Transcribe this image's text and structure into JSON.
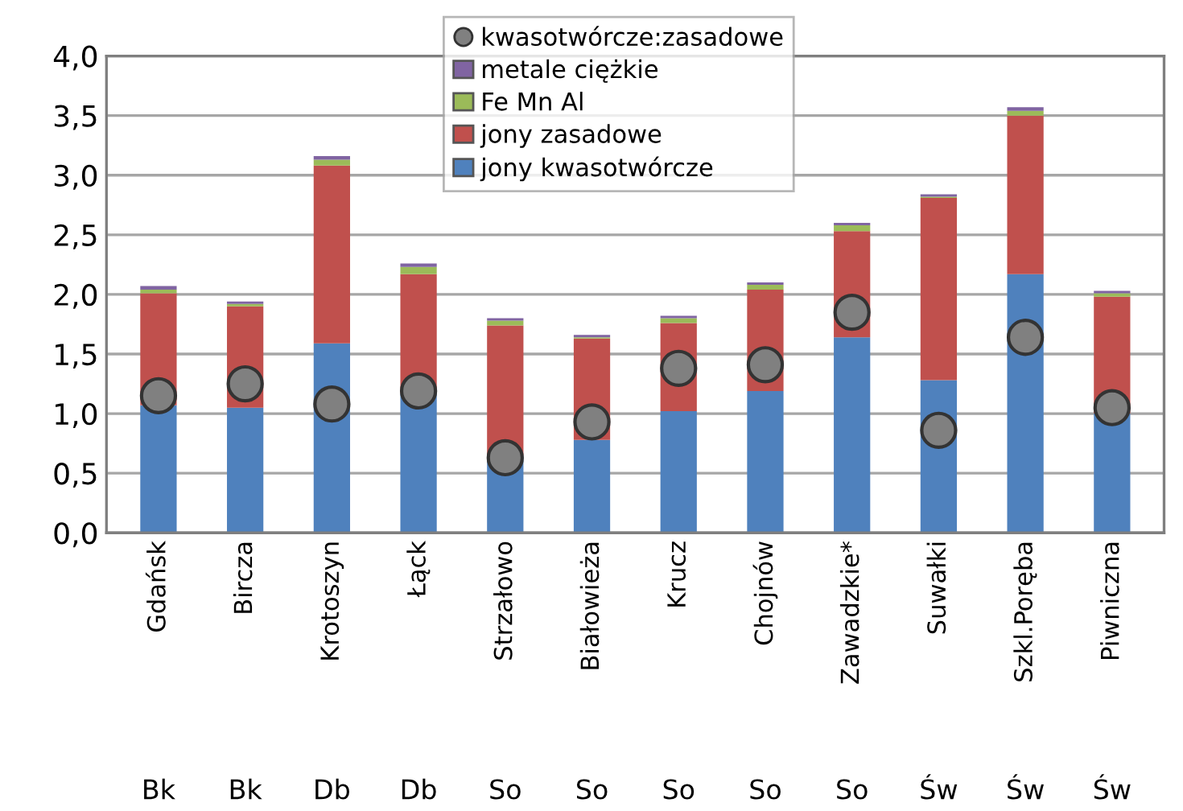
{
  "chart_data": {
    "type": "bar",
    "stacked": true,
    "categories": [
      "Gdańsk",
      "Bircza",
      "Krotoszyn",
      "Łąck",
      "Strzałowo",
      "Białowieża",
      "Krucz",
      "Chojnów",
      "Zawadzkie*",
      "Suwałki",
      "Szkl.Poręba",
      "Piwniczna"
    ],
    "series": [
      {
        "name": "jony kwasotwórcze",
        "color": "#4f81bd",
        "values": [
          1.07,
          1.05,
          1.59,
          1.17,
          0.65,
          0.78,
          1.02,
          1.19,
          1.64,
          1.28,
          2.17,
          1.0
        ]
      },
      {
        "name": "jony zasadowe",
        "color": "#c0504d",
        "values": [
          0.94,
          0.85,
          1.49,
          1.0,
          1.09,
          0.85,
          0.74,
          0.85,
          0.89,
          1.53,
          1.33,
          0.98
        ]
      },
      {
        "name": "Fe Mn Al",
        "color": "#9bbb59",
        "values": [
          0.03,
          0.02,
          0.05,
          0.06,
          0.04,
          0.01,
          0.04,
          0.04,
          0.05,
          0.01,
          0.04,
          0.03
        ]
      },
      {
        "name": "metale ciężkie",
        "color": "#8064a2",
        "values": [
          0.03,
          0.02,
          0.03,
          0.03,
          0.02,
          0.02,
          0.02,
          0.02,
          0.02,
          0.02,
          0.03,
          0.02
        ]
      },
      {
        "name": "kwasotwórcze:zasadowe",
        "type": "scatter",
        "color": "#808080",
        "values": [
          1.15,
          1.25,
          1.08,
          1.19,
          0.63,
          0.93,
          1.38,
          1.41,
          1.85,
          0.86,
          1.64,
          1.05
        ]
      }
    ],
    "ylim": [
      0,
      4
    ],
    "yticks": [
      {
        "value": 0,
        "label": "0,0"
      },
      {
        "value": 0.5,
        "label": "0,5"
      },
      {
        "value": 1,
        "label": "1,0"
      },
      {
        "value": 1.5,
        "label": "1,5"
      },
      {
        "value": 2,
        "label": "2,0"
      },
      {
        "value": 2.5,
        "label": "2,5"
      },
      {
        "value": 3,
        "label": "3,0"
      },
      {
        "value": 3.5,
        "label": "3,5"
      },
      {
        "value": 4,
        "label": "4,0"
      }
    ],
    "grid": "y",
    "legend": "top",
    "marker": "circle",
    "annotations": [
      "Bk",
      "Bk",
      "Db",
      "Db",
      "So",
      "So",
      "So",
      "So",
      "So",
      "Św",
      "Św",
      "Św"
    ]
  }
}
